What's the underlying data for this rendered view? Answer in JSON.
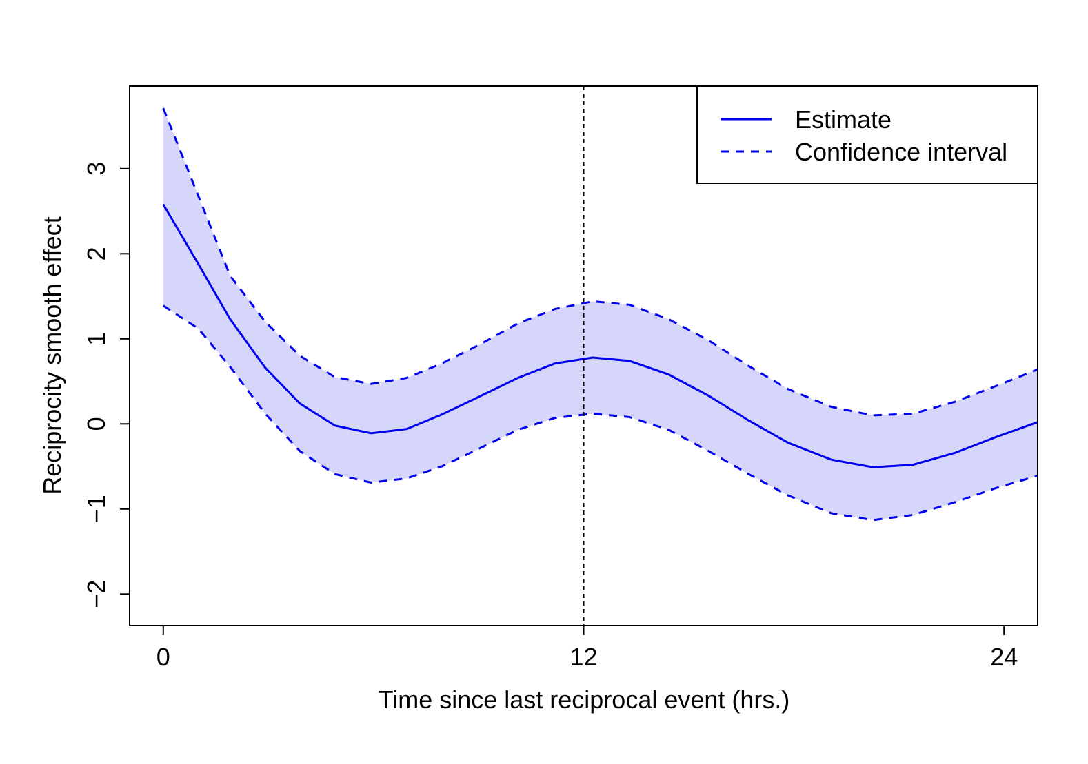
{
  "chart_data": {
    "type": "line",
    "xlabel": "Time since last reciprocal event (hrs.)",
    "ylabel": "Reciprocity smooth effect",
    "x": [
      0,
      1.0,
      1.91,
      2.91,
      3.9,
      4.9,
      5.93,
      6.95,
      7.95,
      9.02,
      10.12,
      11.18,
      12.26,
      13.31,
      14.43,
      15.57,
      16.71,
      17.83,
      19.07,
      20.26,
      21.4,
      22.6,
      23.8,
      24.96
    ],
    "series": [
      {
        "name": "Estimate",
        "color": "#0000ee",
        "dash": false,
        "values": [
          2.58,
          1.88,
          1.23,
          0.66,
          0.24,
          -0.02,
          -0.11,
          -0.06,
          0.11,
          0.32,
          0.54,
          0.71,
          0.78,
          0.74,
          0.58,
          0.33,
          0.04,
          -0.22,
          -0.42,
          -0.51,
          -0.48,
          -0.34,
          -0.15,
          0.02
        ]
      },
      {
        "name": "Confidence interval",
        "color": "#0000ee",
        "dash": true,
        "fill": "#d6d6fa",
        "upper": [
          3.71,
          2.68,
          1.74,
          1.2,
          0.8,
          0.55,
          0.47,
          0.54,
          0.71,
          0.93,
          1.18,
          1.35,
          1.44,
          1.4,
          1.23,
          0.98,
          0.68,
          0.41,
          0.2,
          0.1,
          0.12,
          0.26,
          0.45,
          0.64
        ],
        "lower": [
          1.39,
          1.12,
          0.67,
          0.12,
          -0.32,
          -0.59,
          -0.69,
          -0.64,
          -0.5,
          -0.29,
          -0.07,
          0.07,
          0.12,
          0.08,
          -0.07,
          -0.32,
          -0.59,
          -0.84,
          -1.05,
          -1.13,
          -1.07,
          -0.92,
          -0.75,
          -0.61
        ]
      }
    ],
    "vline": 12,
    "xlim": [
      -0.96,
      24.96
    ],
    "xticks": [
      0,
      12,
      24
    ],
    "ylim": [
      -2.37,
      3.97
    ],
    "yticks": [
      {
        "value": -2,
        "label": "−2"
      },
      {
        "value": -1,
        "label": "−1"
      },
      0,
      1,
      2,
      3
    ],
    "legend": "top-right"
  }
}
